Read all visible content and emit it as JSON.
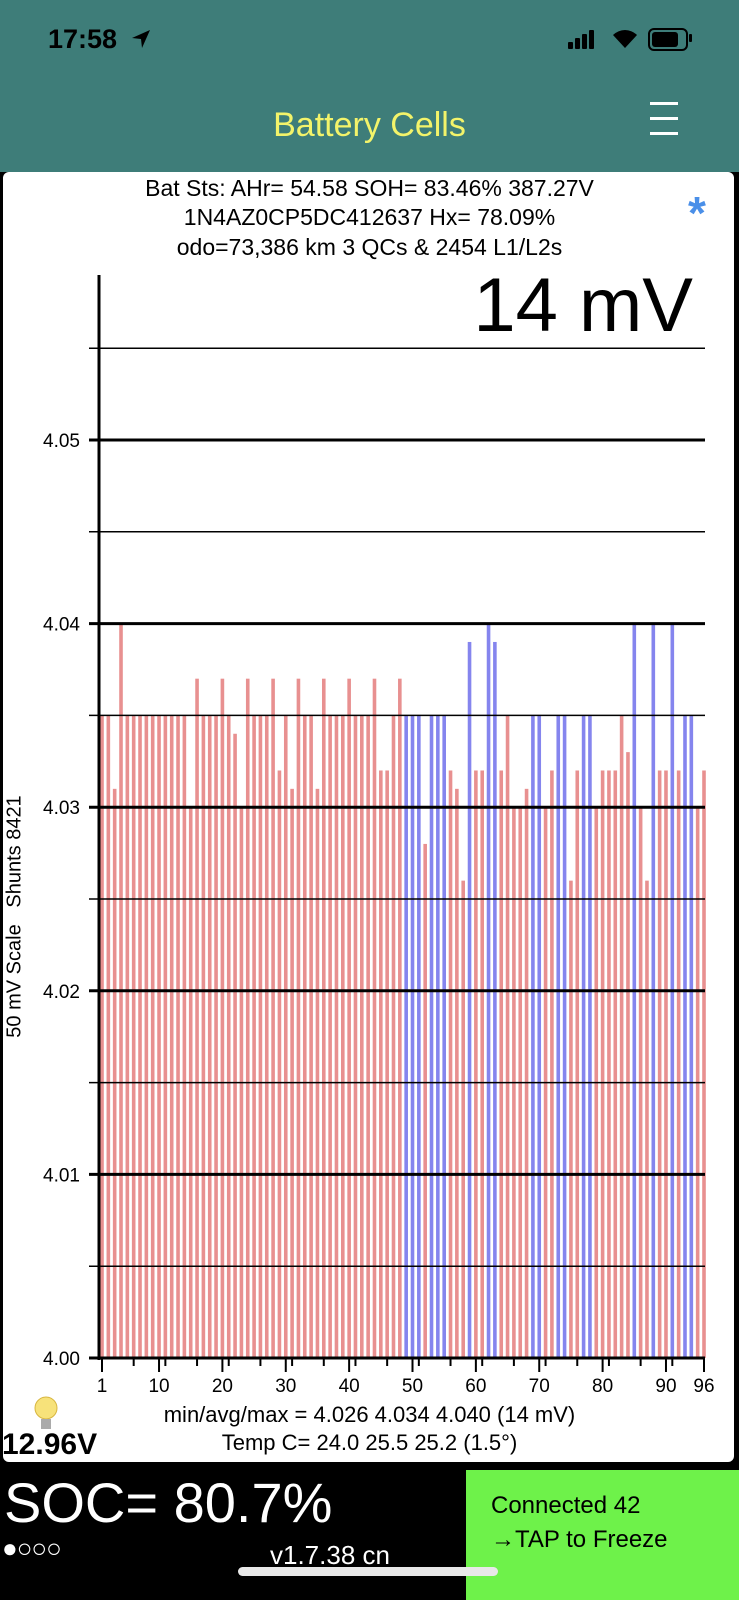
{
  "status_bar": {
    "time": "17:58"
  },
  "header": {
    "title": "Battery Cells",
    "menu_icon": "hamburger-icon"
  },
  "info": {
    "line1": "Bat Sts: AHr= 54.58 SOH= 83.46% 387.27V",
    "line2": "1N4AZ0CP5DC412637   Hx= 78.09%",
    "line3": "odo=73,386 km 3 QCs & 2454 L1/L2s",
    "bluetooth_mark": "*",
    "spread": "14 mV"
  },
  "stats": {
    "minavgmax": "min/avg/max = 4.026 4.034 4.040  (14 mV)",
    "temp": "Temp C= 24.0  25.5  25.2  (1.5°)",
    "aux_voltage": "12.96V"
  },
  "footer": {
    "soc": "SOC= 80.7%",
    "page_dots": "●○○○",
    "version": "v1.7.38 cn",
    "connected": "Connected 42",
    "tap": "→TAP to Freeze"
  },
  "colors": {
    "normal": "#e89090",
    "shunt": "#8585ee",
    "accent": "#3e7d79",
    "button": "#6ef24a"
  },
  "chart_data": {
    "type": "bar",
    "title": "",
    "xlabel": "",
    "ylabel": "50 mV Scale   Shunts 8421",
    "ylim": [
      4.0,
      4.059
    ],
    "y_tick_labels": [
      "4.00",
      "4.01",
      "4.02",
      "4.03",
      "4.04",
      "4.05"
    ],
    "y_ticks": [
      4.0,
      4.01,
      4.02,
      4.03,
      4.04,
      4.05
    ],
    "x_tick_labels": [
      "1",
      "10",
      "20",
      "30",
      "40",
      "50",
      "60",
      "70",
      "80",
      "90",
      "96"
    ],
    "x_ticks": [
      1,
      10,
      20,
      30,
      40,
      50,
      60,
      70,
      80,
      90,
      96
    ],
    "categories_count": 96,
    "values": [
      4.035,
      4.035,
      4.031,
      4.04,
      4.035,
      4.035,
      4.035,
      4.035,
      4.035,
      4.035,
      4.035,
      4.035,
      4.035,
      4.035,
      4.03,
      4.037,
      4.035,
      4.035,
      4.035,
      4.037,
      4.035,
      4.034,
      4.03,
      4.037,
      4.035,
      4.035,
      4.035,
      4.037,
      4.032,
      4.035,
      4.031,
      4.037,
      4.035,
      4.035,
      4.031,
      4.037,
      4.035,
      4.035,
      4.035,
      4.037,
      4.035,
      4.035,
      4.035,
      4.037,
      4.032,
      4.032,
      4.035,
      4.037,
      4.035,
      4.035,
      4.035,
      4.028,
      4.035,
      4.035,
      4.035,
      4.032,
      4.031,
      4.026,
      4.039,
      4.032,
      4.032,
      4.04,
      4.039,
      4.032,
      4.035,
      4.03,
      4.03,
      4.031,
      4.035,
      4.035,
      4.03,
      4.032,
      4.035,
      4.035,
      4.026,
      4.032,
      4.035,
      4.035,
      4.03,
      4.032,
      4.032,
      4.032,
      4.035,
      4.033,
      4.04,
      4.03,
      4.026,
      4.04,
      4.032,
      4.032,
      4.04,
      4.032,
      4.035,
      4.035,
      4.03,
      4.032
    ],
    "shunt_cells": [
      49,
      50,
      51,
      53,
      54,
      55,
      59,
      62,
      63,
      69,
      70,
      73,
      74,
      77,
      78,
      85,
      88,
      91,
      93,
      94
    ],
    "grid": true,
    "legend": "none"
  }
}
